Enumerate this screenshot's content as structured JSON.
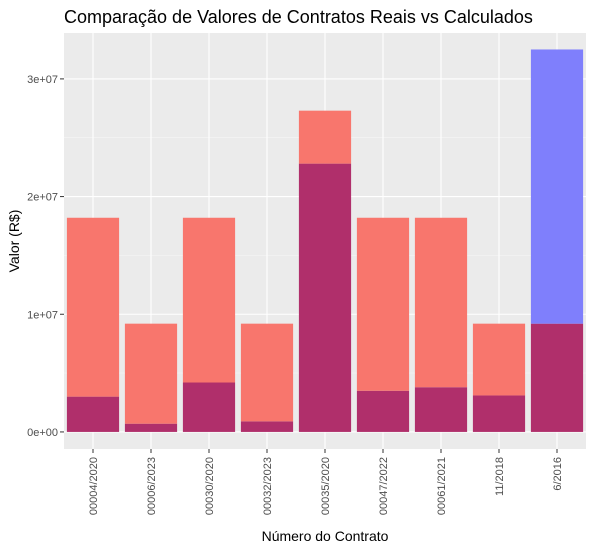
{
  "chart_data": {
    "type": "bar",
    "title": "Comparação de Valores de Contratos Reais vs Calculados",
    "xlabel": "Número do Contrato",
    "ylabel": "Valor (R$)",
    "categories": [
      "00004/2020",
      "00006/2023",
      "00030/2020",
      "00032/2023",
      "00035/2020",
      "00047/2022",
      "00061/2021",
      "11/2018",
      "6/2016"
    ],
    "series": [
      {
        "color": "#f8766d",
        "values": [
          18200000,
          9200000,
          18200000,
          9200000,
          27300000,
          18200000,
          18200000,
          9200000,
          9200000
        ]
      },
      {
        "color": "#7f7ffc",
        "values": [
          3000000,
          700000,
          4200000,
          900000,
          22800000,
          3500000,
          3800000,
          3100000,
          32500000
        ]
      }
    ],
    "overlap_color": "#b02f6b",
    "ylim": [
      -1450000,
      33900000
    ],
    "y_ticks": [
      0,
      10000000,
      20000000,
      30000000
    ],
    "y_tick_labels": [
      "0e+00",
      "1e+07",
      "2e+07",
      "3e+07"
    ],
    "grid": true,
    "legend": "none",
    "bar_position": "identity-overlap"
  }
}
